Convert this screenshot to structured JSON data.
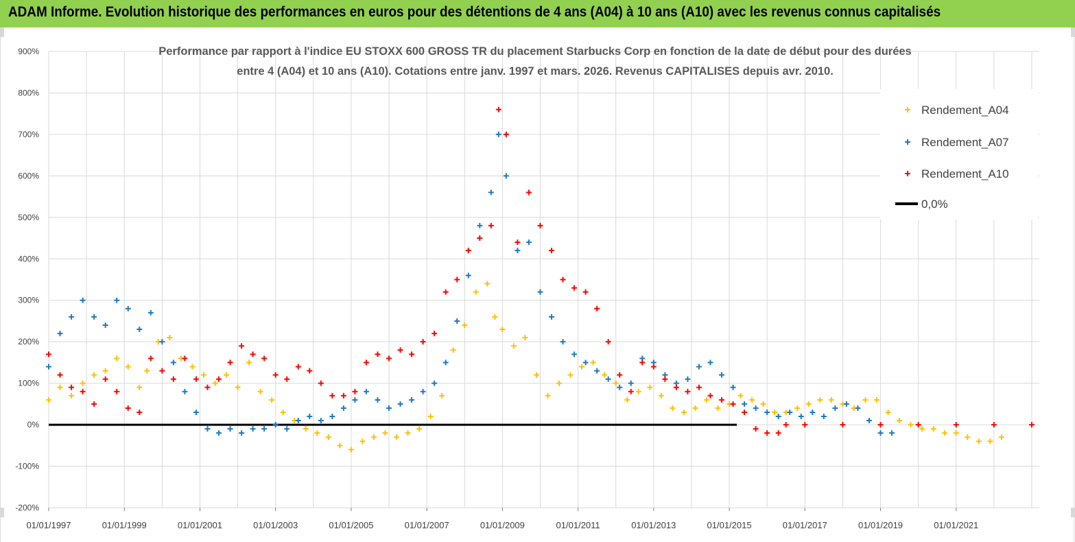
{
  "header": {
    "banner_title": "ADAM Informe. Evolution historique des performances en euros pour des détentions de 4 ans (A04) à 10 ans (A10) avec les revenus connus capitalisés"
  },
  "colors": {
    "banner": "#92d050",
    "a04": "#ffc000",
    "a07": "#1f78c1",
    "a10": "#ff0000",
    "zero": "#000000"
  },
  "chart_data": {
    "type": "scatter",
    "title_lines": [
      "Performance par rapport à l'indice EU STOXX 600 GROSS TR  du placement Starbucks Corp en fonction de la date de début pour des durées",
      "entre 4 (A04) et 10 ans (A10). Cotations entre janv. 1997 et mars. 2026. Revenus CAPITALISES depuis avr. 2010."
    ],
    "y_ticks": [
      "900%",
      "800%",
      "700%",
      "600%",
      "500%",
      "400%",
      "300%",
      "200%",
      "100%",
      "0%",
      "-100%",
      "-200%"
    ],
    "y_range": [
      -200,
      900
    ],
    "x_ticks": [
      "01/01/1997",
      "01/01/1999",
      "01/01/2001",
      "01/01/2003",
      "01/01/2005",
      "01/01/2007",
      "01/01/2009",
      "01/01/2011",
      "01/01/2013",
      "01/01/2015",
      "01/01/2017",
      "01/01/2019",
      "01/01/2021"
    ],
    "x_range": [
      1997.0,
      2023.2
    ],
    "grid": true,
    "legend_position": "top-right",
    "legend": [
      "Rendement_A04",
      "Rendement_A07",
      "Rendement_A10",
      "0,0%"
    ],
    "series": [
      {
        "name": "Rendement_A04",
        "color": "#ffc000",
        "points": [
          [
            1997.0,
            60
          ],
          [
            1997.3,
            90
          ],
          [
            1997.6,
            70
          ],
          [
            1997.9,
            100
          ],
          [
            1998.2,
            120
          ],
          [
            1998.5,
            130
          ],
          [
            1998.8,
            160
          ],
          [
            1999.1,
            140
          ],
          [
            1999.4,
            90
          ],
          [
            1999.6,
            130
          ],
          [
            1999.9,
            200
          ],
          [
            2000.2,
            210
          ],
          [
            2000.5,
            160
          ],
          [
            2000.8,
            140
          ],
          [
            2001.1,
            120
          ],
          [
            2001.4,
            100
          ],
          [
            2001.7,
            120
          ],
          [
            2002.0,
            90
          ],
          [
            2002.3,
            150
          ],
          [
            2002.6,
            80
          ],
          [
            2002.9,
            60
          ],
          [
            2003.2,
            30
          ],
          [
            2003.5,
            10
          ],
          [
            2003.8,
            -10
          ],
          [
            2004.1,
            -20
          ],
          [
            2004.4,
            -30
          ],
          [
            2004.7,
            -50
          ],
          [
            2005.0,
            -60
          ],
          [
            2005.3,
            -40
          ],
          [
            2005.6,
            -30
          ],
          [
            2005.9,
            -20
          ],
          [
            2006.2,
            -30
          ],
          [
            2006.5,
            -20
          ],
          [
            2006.8,
            -10
          ],
          [
            2007.1,
            20
          ],
          [
            2007.4,
            70
          ],
          [
            2007.7,
            180
          ],
          [
            2008.0,
            240
          ],
          [
            2008.3,
            320
          ],
          [
            2008.6,
            340
          ],
          [
            2008.8,
            260
          ],
          [
            2009.0,
            230
          ],
          [
            2009.3,
            190
          ],
          [
            2009.6,
            210
          ],
          [
            2009.9,
            120
          ],
          [
            2010.2,
            70
          ],
          [
            2010.5,
            100
          ],
          [
            2010.8,
            120
          ],
          [
            2011.1,
            140
          ],
          [
            2011.4,
            150
          ],
          [
            2011.7,
            120
          ],
          [
            2012.0,
            100
          ],
          [
            2012.3,
            60
          ],
          [
            2012.6,
            80
          ],
          [
            2012.9,
            90
          ],
          [
            2013.2,
            70
          ],
          [
            2013.5,
            40
          ],
          [
            2013.8,
            30
          ],
          [
            2014.1,
            40
          ],
          [
            2014.4,
            60
          ],
          [
            2014.7,
            40
          ],
          [
            2015.0,
            50
          ],
          [
            2015.3,
            70
          ],
          [
            2015.6,
            60
          ],
          [
            2015.9,
            50
          ],
          [
            2016.2,
            30
          ],
          [
            2016.5,
            30
          ],
          [
            2016.8,
            40
          ],
          [
            2017.1,
            50
          ],
          [
            2017.4,
            60
          ],
          [
            2017.7,
            60
          ],
          [
            2018.0,
            50
          ],
          [
            2018.3,
            40
          ],
          [
            2018.6,
            60
          ],
          [
            2018.9,
            60
          ],
          [
            2019.2,
            30
          ],
          [
            2019.5,
            10
          ],
          [
            2019.8,
            0
          ],
          [
            2020.1,
            -10
          ],
          [
            2020.4,
            -10
          ],
          [
            2020.7,
            -20
          ],
          [
            2021.0,
            -20
          ],
          [
            2021.3,
            -30
          ],
          [
            2021.6,
            -40
          ],
          [
            2021.9,
            -40
          ],
          [
            2022.2,
            -30
          ]
        ]
      },
      {
        "name": "Rendement_A07",
        "color": "#1f78c1",
        "points": [
          [
            1997.0,
            140
          ],
          [
            1997.3,
            220
          ],
          [
            1997.6,
            260
          ],
          [
            1997.9,
            300
          ],
          [
            1998.2,
            260
          ],
          [
            1998.5,
            240
          ],
          [
            1998.8,
            300
          ],
          [
            1999.1,
            280
          ],
          [
            1999.4,
            230
          ],
          [
            1999.7,
            270
          ],
          [
            2000.0,
            200
          ],
          [
            2000.3,
            150
          ],
          [
            2000.6,
            80
          ],
          [
            2000.9,
            30
          ],
          [
            2001.2,
            -10
          ],
          [
            2001.5,
            -20
          ],
          [
            2001.8,
            -10
          ],
          [
            2002.1,
            -20
          ],
          [
            2002.4,
            -10
          ],
          [
            2002.7,
            -10
          ],
          [
            2003.0,
            0
          ],
          [
            2003.3,
            -10
          ],
          [
            2003.6,
            10
          ],
          [
            2003.9,
            20
          ],
          [
            2004.2,
            10
          ],
          [
            2004.5,
            20
          ],
          [
            2004.8,
            40
          ],
          [
            2005.1,
            60
          ],
          [
            2005.4,
            80
          ],
          [
            2005.7,
            60
          ],
          [
            2006.0,
            40
          ],
          [
            2006.3,
            50
          ],
          [
            2006.6,
            60
          ],
          [
            2006.9,
            80
          ],
          [
            2007.2,
            100
          ],
          [
            2007.5,
            150
          ],
          [
            2007.8,
            250
          ],
          [
            2008.1,
            360
          ],
          [
            2008.4,
            480
          ],
          [
            2008.7,
            560
          ],
          [
            2008.9,
            700
          ],
          [
            2009.1,
            600
          ],
          [
            2009.4,
            420
          ],
          [
            2009.7,
            440
          ],
          [
            2010.0,
            320
          ],
          [
            2010.3,
            260
          ],
          [
            2010.6,
            200
          ],
          [
            2010.9,
            170
          ],
          [
            2011.2,
            150
          ],
          [
            2011.5,
            130
          ],
          [
            2011.8,
            110
          ],
          [
            2012.1,
            90
          ],
          [
            2012.4,
            100
          ],
          [
            2012.7,
            160
          ],
          [
            2013.0,
            150
          ],
          [
            2013.3,
            120
          ],
          [
            2013.6,
            100
          ],
          [
            2013.9,
            110
          ],
          [
            2014.2,
            140
          ],
          [
            2014.5,
            150
          ],
          [
            2014.8,
            120
          ],
          [
            2015.1,
            90
          ],
          [
            2015.4,
            50
          ],
          [
            2015.7,
            40
          ],
          [
            2016.0,
            30
          ],
          [
            2016.3,
            20
          ],
          [
            2016.6,
            30
          ],
          [
            2016.9,
            20
          ],
          [
            2017.2,
            30
          ],
          [
            2017.5,
            20
          ],
          [
            2017.8,
            40
          ],
          [
            2018.1,
            50
          ],
          [
            2018.4,
            40
          ],
          [
            2018.7,
            10
          ],
          [
            2019.0,
            -20
          ],
          [
            2019.3,
            -20
          ]
        ]
      },
      {
        "name": "Rendement_A10",
        "color": "#ff0000",
        "points": [
          [
            1997.0,
            170
          ],
          [
            1997.3,
            120
          ],
          [
            1997.6,
            90
          ],
          [
            1997.9,
            80
          ],
          [
            1998.2,
            50
          ],
          [
            1998.5,
            110
          ],
          [
            1998.8,
            80
          ],
          [
            1999.1,
            40
          ],
          [
            1999.4,
            30
          ],
          [
            1999.7,
            160
          ],
          [
            2000.0,
            130
          ],
          [
            2000.3,
            110
          ],
          [
            2000.6,
            160
          ],
          [
            2000.9,
            110
          ],
          [
            2001.2,
            90
          ],
          [
            2001.5,
            110
          ],
          [
            2001.8,
            150
          ],
          [
            2002.1,
            190
          ],
          [
            2002.4,
            170
          ],
          [
            2002.7,
            160
          ],
          [
            2003.0,
            120
          ],
          [
            2003.3,
            110
          ],
          [
            2003.6,
            140
          ],
          [
            2003.9,
            130
          ],
          [
            2004.2,
            100
          ],
          [
            2004.5,
            70
          ],
          [
            2004.8,
            70
          ],
          [
            2005.1,
            80
          ],
          [
            2005.4,
            150
          ],
          [
            2005.7,
            170
          ],
          [
            2006.0,
            160
          ],
          [
            2006.3,
            180
          ],
          [
            2006.6,
            170
          ],
          [
            2006.9,
            200
          ],
          [
            2007.2,
            220
          ],
          [
            2007.5,
            320
          ],
          [
            2007.8,
            350
          ],
          [
            2008.1,
            420
          ],
          [
            2008.4,
            450
          ],
          [
            2008.7,
            480
          ],
          [
            2008.9,
            760
          ],
          [
            2009.1,
            700
          ],
          [
            2009.4,
            440
          ],
          [
            2009.7,
            560
          ],
          [
            2010.0,
            480
          ],
          [
            2010.3,
            420
          ],
          [
            2010.6,
            350
          ],
          [
            2010.9,
            330
          ],
          [
            2011.2,
            320
          ],
          [
            2011.5,
            280
          ],
          [
            2011.8,
            200
          ],
          [
            2012.1,
            120
          ],
          [
            2012.4,
            80
          ],
          [
            2012.7,
            150
          ],
          [
            2013.0,
            140
          ],
          [
            2013.3,
            110
          ],
          [
            2013.6,
            90
          ],
          [
            2013.9,
            80
          ],
          [
            2014.2,
            90
          ],
          [
            2014.5,
            70
          ],
          [
            2014.8,
            60
          ],
          [
            2015.1,
            50
          ],
          [
            2015.4,
            30
          ],
          [
            2015.7,
            -10
          ],
          [
            2016.0,
            -20
          ],
          [
            2016.3,
            -20
          ],
          [
            2016.5,
            0
          ],
          [
            2017.0,
            0
          ],
          [
            2018.0,
            0
          ],
          [
            2019.0,
            0
          ],
          [
            2020.0,
            0
          ],
          [
            2021.0,
            0
          ],
          [
            2022.0,
            0
          ],
          [
            2023.0,
            0
          ]
        ]
      }
    ],
    "zero_line": {
      "name": "0,0%",
      "from": 1997.0,
      "to": 2015.2,
      "value": 0
    }
  }
}
